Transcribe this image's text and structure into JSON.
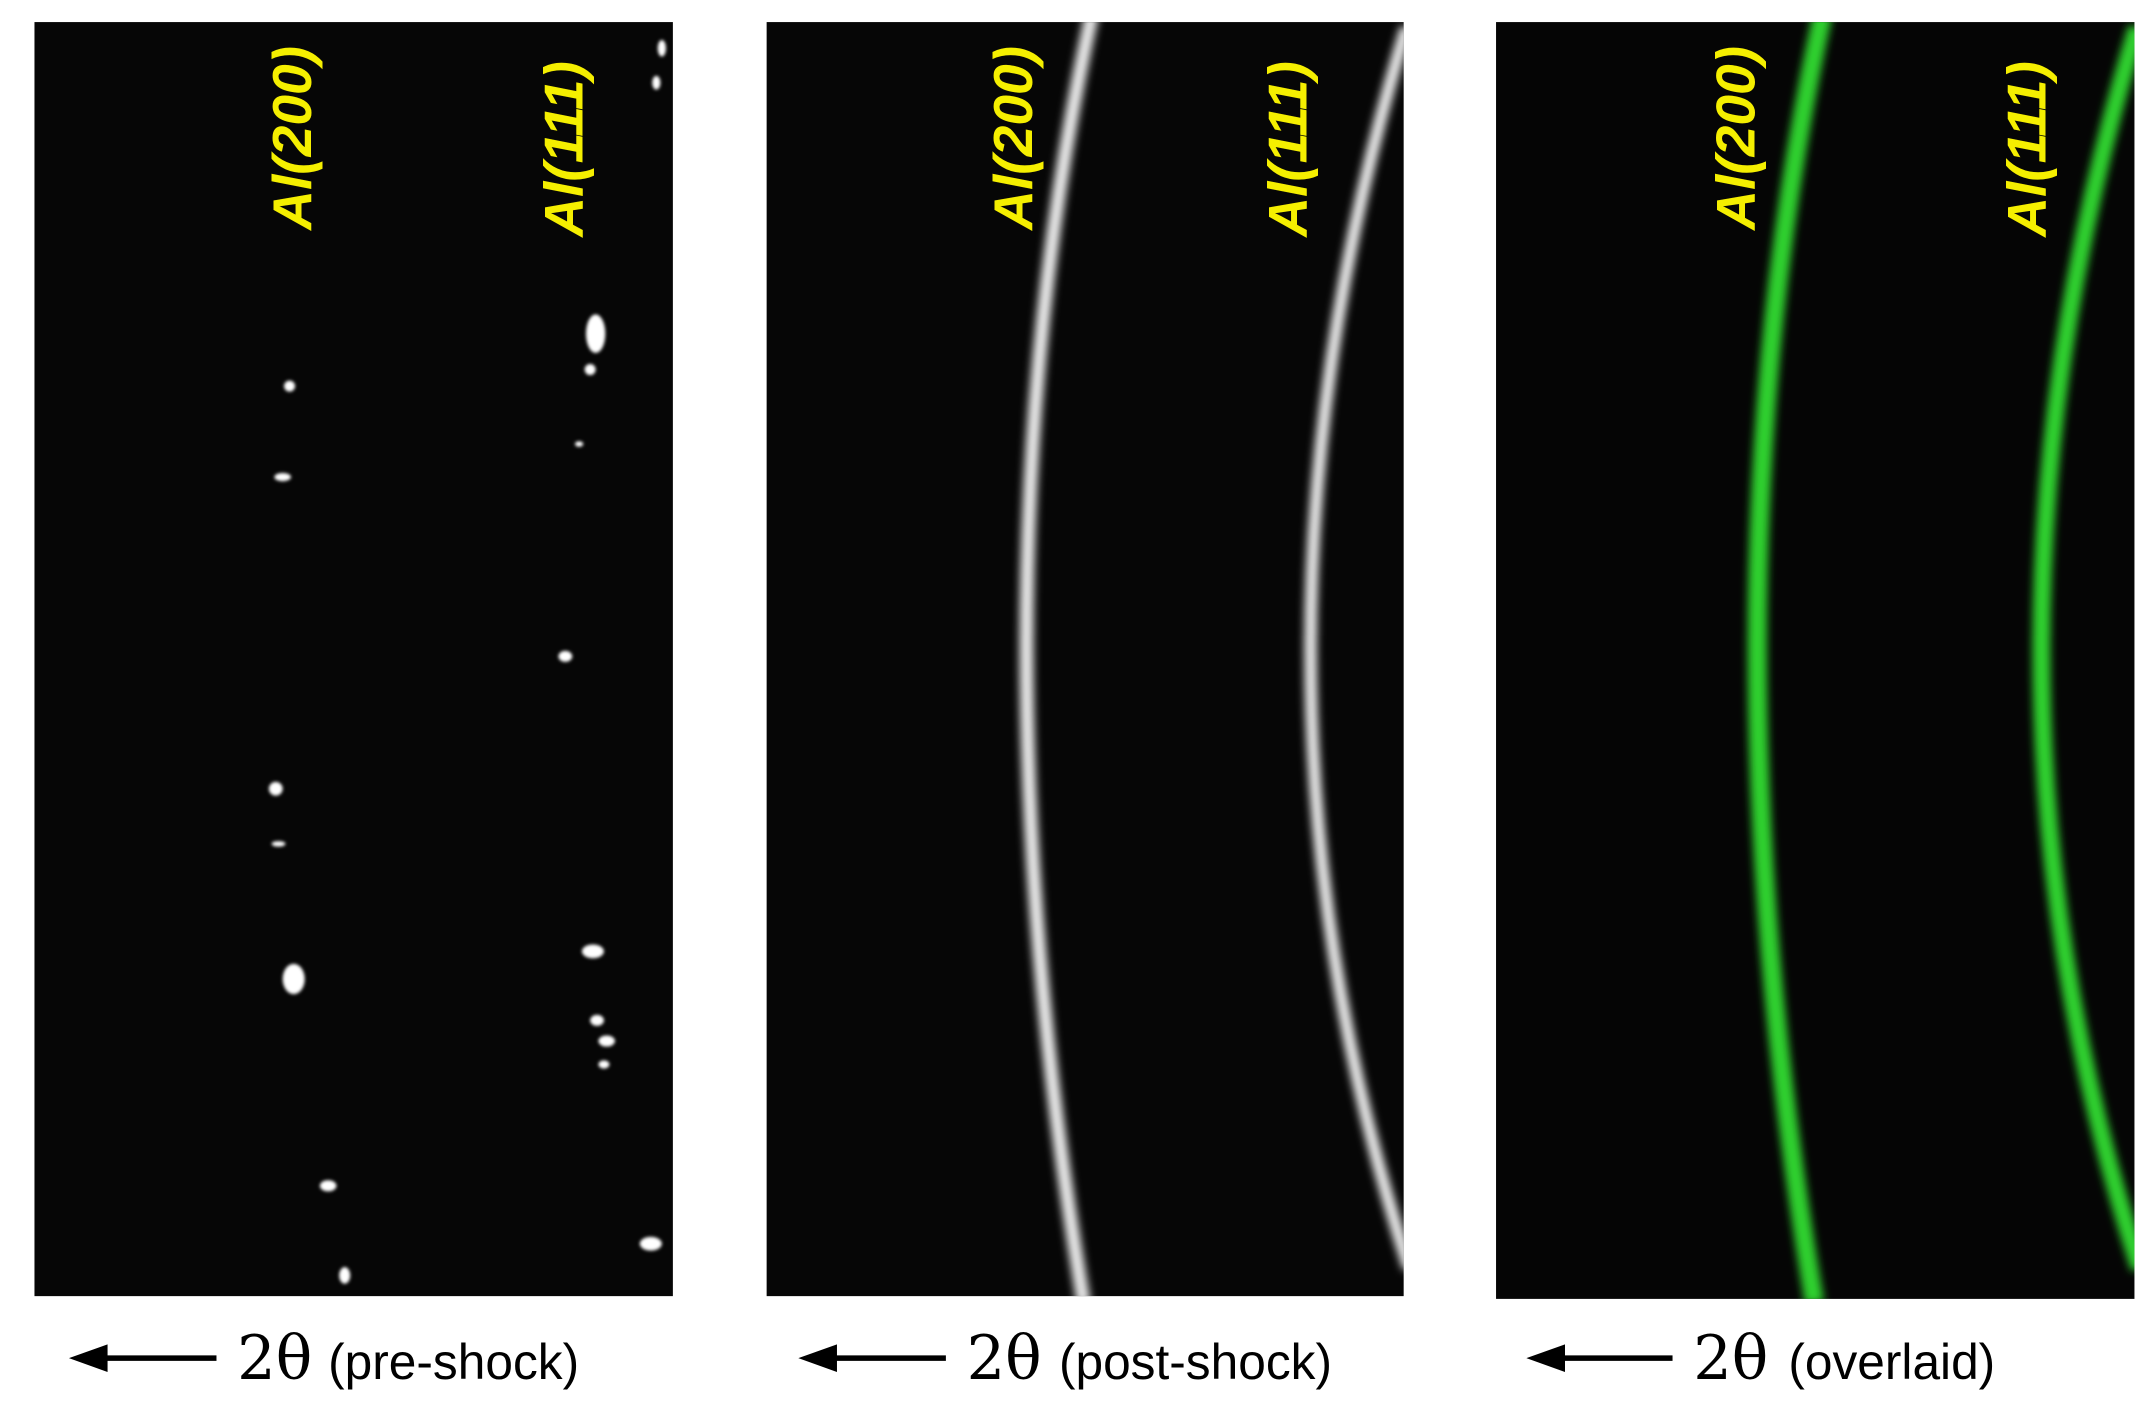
{
  "panels": [
    {
      "labels": [
        "Al(200)",
        "Al(111)"
      ],
      "symbol": "2θ",
      "caption": "(pre-shock)"
    },
    {
      "labels": [
        "Al(200)",
        "Al(111)"
      ],
      "symbol": "2θ",
      "caption": "(post-shock)"
    },
    {
      "labels": [
        "Al(200)",
        "Al(111)"
      ],
      "symbol": "2θ",
      "caption": "(overlaid)"
    }
  ]
}
